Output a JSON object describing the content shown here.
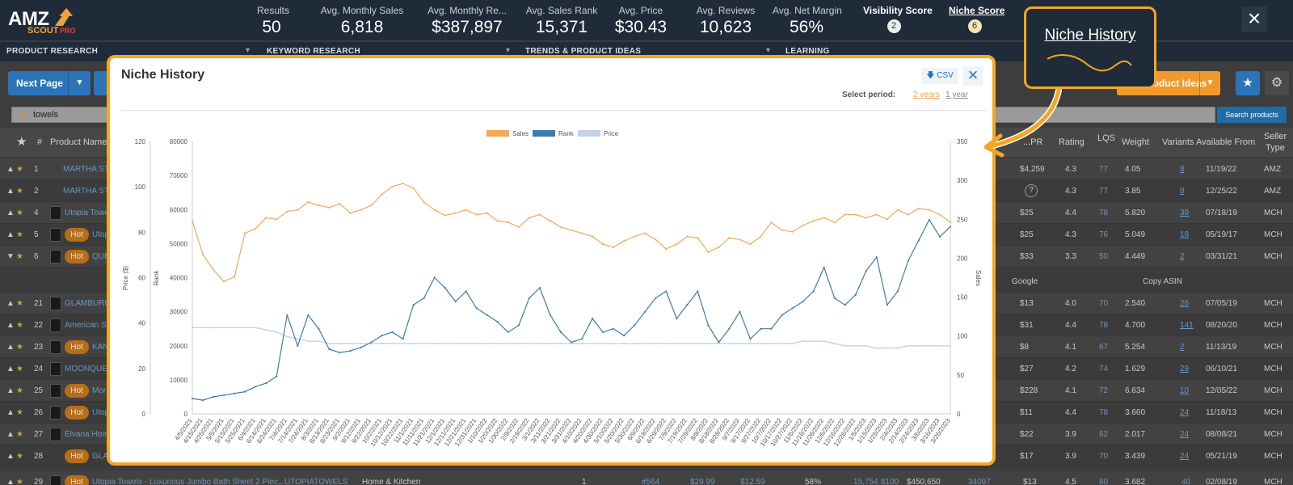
{
  "logo": {
    "primary": "AMZ",
    "secondary": "SCOUT",
    "badge": "PRO"
  },
  "stats": [
    {
      "label": "Results",
      "value": "50"
    },
    {
      "label": "Avg. Monthly Sales",
      "value": "6,818"
    },
    {
      "label": "Avg. Monthly Re...",
      "value": "$387,897"
    },
    {
      "label": "Avg. Sales Rank",
      "value": "15,371"
    },
    {
      "label": "Avg. Price",
      "value": "$30.43"
    },
    {
      "label": "Avg. Reviews",
      "value": "10,623"
    },
    {
      "label": "Avg. Net Margin",
      "value": "56%"
    }
  ],
  "scores": {
    "visibility": {
      "label": "Visibility Score",
      "value": "2",
      "color": "#e9f1ec"
    },
    "niche": {
      "label": "Niche Score",
      "value": "6",
      "color": "#f5e6b8"
    }
  },
  "close_icon": "close-icon",
  "sections": [
    "PRODUCT RESEARCH",
    "KEYWORD RESEARCH",
    "TRENDS & PRODUCT IDEAS",
    "LEARNING"
  ],
  "toolbar": {
    "next_page": "Next Page",
    "product_ideas": "Product Ideas",
    "search_button": "Search products"
  },
  "search": {
    "value": "towels"
  },
  "table": {
    "headers": {
      "num": "#",
      "product_name": "Product Name",
      "price_short": "...PR",
      "rating": "Rating",
      "lqs": "LQS",
      "weight": "Weight",
      "variants": "Variants",
      "available_from": "Available From",
      "seller_type_1": "Seller",
      "seller_type_2": "Type"
    },
    "rows": [
      {
        "num": "1",
        "name": "MARTHA ST",
        "hot": false,
        "thumb": false,
        "price": "$4,259",
        "rating": "4.3",
        "lqs": "77",
        "weight": "4.05",
        "variants": "8",
        "available": "11/19/22",
        "seller": "AMZ"
      },
      {
        "num": "2",
        "name": "MARTHA ST",
        "hot": false,
        "thumb": false,
        "price": "?",
        "rating": "4.3",
        "lqs": "77",
        "weight": "3.85",
        "variants": "8",
        "available": "12/25/22",
        "seller": "AMZ"
      },
      {
        "num": "4",
        "name": "Utopia Towe",
        "hot": false,
        "thumb": true,
        "price": "$25",
        "rating": "4.4",
        "lqs": "78",
        "weight": "5.820",
        "variants": "39",
        "available": "07/18/19",
        "seller": "MCH"
      },
      {
        "num": "5",
        "name": "Utop",
        "hot": true,
        "thumb": true,
        "price": "$25",
        "rating": "4.3",
        "lqs": "76",
        "weight": "5.049",
        "variants": "18",
        "available": "05/19/17",
        "seller": "MCH"
      },
      {
        "num": "6",
        "name": "QUE",
        "hot": true,
        "thumb": true,
        "price": "$33",
        "rating": "3.3",
        "lqs": "50",
        "weight": "4.449",
        "variants": "2",
        "available": "03/31/21",
        "seller": "MCH"
      }
    ],
    "expanded_row": {
      "google": "Google",
      "copy_asin": "Copy ASIN"
    },
    "rows2": [
      {
        "num": "21",
        "name": "GLAMBURG",
        "hot": false,
        "thumb": true,
        "price": "$13",
        "rating": "4.0",
        "lqs": "70",
        "weight": "2.540",
        "variants": "26",
        "available": "07/05/19",
        "seller": "MCH"
      },
      {
        "num": "22",
        "name": "American So",
        "hot": false,
        "thumb": true,
        "price": "$31",
        "rating": "4.4",
        "lqs": "78",
        "weight": "4.700",
        "variants": "141",
        "available": "08/20/20",
        "seller": "MCH"
      },
      {
        "num": "23",
        "name": "KAN",
        "hot": true,
        "thumb": true,
        "price": "$8",
        "rating": "4.1",
        "lqs": "67",
        "weight": "5.254",
        "variants": "2",
        "available": "11/13/19",
        "seller": "MCH"
      },
      {
        "num": "24",
        "name": "MOONQUE",
        "hot": false,
        "thumb": true,
        "price": "$27",
        "rating": "4.2",
        "lqs": "74",
        "weight": "1.629",
        "variants": "29",
        "available": "06/10/21",
        "seller": "MCH"
      },
      {
        "num": "25",
        "name": "Mor",
        "hot": true,
        "thumb": true,
        "price": "$228",
        "rating": "4.1",
        "lqs": "72",
        "weight": "6.634",
        "variants": "10",
        "available": "12/05/22",
        "seller": "MCH"
      },
      {
        "num": "26",
        "name": "Utop",
        "hot": true,
        "thumb": true,
        "price": "$11",
        "rating": "4.4",
        "lqs": "78",
        "weight": "3.660",
        "variants": "24",
        "available": "11/18/13",
        "seller": "MCH"
      },
      {
        "num": "27",
        "name": "Elvana Hom",
        "hot": false,
        "thumb": true,
        "price": "$22",
        "rating": "3.9",
        "lqs": "62",
        "weight": "2.017",
        "variants": "24",
        "available": "08/08/21",
        "seller": "MCH"
      },
      {
        "num": "28",
        "name": "GLA",
        "hot": true,
        "thumb": false,
        "price": "$17",
        "rating": "3.9",
        "lqs": "70",
        "weight": "3.439",
        "variants": "24",
        "available": "05/21/19",
        "seller": "MCH"
      }
    ],
    "last_row": {
      "num": "29",
      "name": "Utopia Towels - Luxurious Jumbo Bath Sheet 2 Piec...",
      "brand": "UTOPIATOWELS",
      "category": "Home & Kitchen",
      "fba": "1",
      "rank": "#564",
      "price1": "$29.99",
      "price2": "$12.59",
      "margin": "58%",
      "reviews": "15,754",
      "sales": "8100",
      "revenue": "$450,650",
      "num2": "34097",
      "price": "$13",
      "rating": "4.5",
      "lqs": "80",
      "weight": "3.682",
      "variants": "40",
      "available": "02/08/19",
      "seller": "MCH"
    }
  },
  "modal": {
    "title": "Niche History",
    "csv_label": "CSV",
    "select_period_label": "Select period:",
    "period_options": [
      "2 years",
      "1 year"
    ],
    "selected_period": "2 years"
  },
  "callout": {
    "title": "Niche History"
  },
  "chart_data": {
    "type": "line",
    "legend": [
      "Sales",
      "Rank",
      "Price"
    ],
    "legend_position": "top-center",
    "colors": {
      "Sales": "#f5a85a",
      "Rank": "#3e7bac",
      "Price": "#c2d4e3"
    },
    "axes": {
      "price": {
        "label": "Price ($)",
        "ticks": [
          "0",
          "20",
          "40",
          "60",
          "80",
          "100",
          "120"
        ],
        "range": [
          0,
          120
        ]
      },
      "rank": {
        "label": "Rank",
        "ticks": [
          "0",
          "10000",
          "20000",
          "30000",
          "40000",
          "50000",
          "60000",
          "70000",
          "80000"
        ],
        "range": [
          0,
          80000
        ]
      },
      "sales": {
        "label": "Sales",
        "ticks": [
          "0",
          "50",
          "100",
          "150",
          "200",
          "250",
          "300",
          "350"
        ],
        "range": [
          0,
          350
        ]
      }
    },
    "x_labels": [
      "4/5/2021",
      "4/15/2021",
      "4/25/2021",
      "5/5/2021",
      "5/15/2021",
      "5/25/2021",
      "6/4/2021",
      "6/14/2021",
      "6/24/2021",
      "7/4/2021",
      "7/14/2021",
      "7/24/2021",
      "8/3/2021",
      "8/13/2021",
      "8/23/2021",
      "9/2/2021",
      "9/12/2021",
      "9/22/2021",
      "10/2/2021",
      "10/12/2021",
      "10/22/2021",
      "11/1/2021",
      "11/11/2021",
      "11/21/2021",
      "12/1/2021",
      "12/11/2021",
      "12/21/2021",
      "12/31/2021",
      "1/10/2022",
      "1/20/2022",
      "1/30/2022",
      "2/9/2022",
      "2/19/2022",
      "3/1/2022",
      "3/11/2022",
      "3/21/2022",
      "3/31/2022",
      "4/10/2022",
      "4/20/2022",
      "4/30/2022",
      "5/10/2022",
      "5/20/2022",
      "5/30/2022",
      "6/9/2022",
      "6/19/2022",
      "6/29/2022",
      "7/9/2022",
      "7/19/2022",
      "7/29/2022",
      "8/8/2022",
      "8/18/2022",
      "8/28/2022",
      "9/7/2022",
      "9/17/2022",
      "9/27/2022",
      "10/7/2022",
      "10/17/2022",
      "10/27/2022",
      "11/6/2022",
      "11/16/2022",
      "11/26/2022",
      "12/6/2022",
      "12/16/2022",
      "12/26/2022",
      "1/5/2023",
      "1/15/2023",
      "1/25/2023",
      "2/4/2023",
      "2/14/2023",
      "2/24/2023",
      "3/6/2023",
      "3/16/2023",
      "3/26/2023"
    ],
    "series": [
      {
        "name": "Sales",
        "axis": "sales",
        "values": [
          248,
          205,
          185,
          170,
          176,
          232,
          238,
          252,
          250,
          260,
          262,
          272,
          268,
          265,
          270,
          258,
          262,
          268,
          282,
          292,
          296,
          290,
          272,
          262,
          255,
          258,
          262,
          256,
          258,
          248,
          246,
          240,
          252,
          256,
          248,
          240,
          236,
          232,
          228,
          218,
          214,
          222,
          228,
          232,
          224,
          212,
          218,
          228,
          226,
          208,
          214,
          226,
          224,
          218,
          228,
          246,
          236,
          234,
          242,
          248,
          252,
          246,
          256,
          256,
          252,
          256,
          250,
          262,
          256,
          264,
          262,
          256,
          246
        ]
      },
      {
        "name": "Rank",
        "axis": "rank",
        "values": [
          4500,
          4000,
          5000,
          5500,
          6000,
          6500,
          8000,
          9000,
          11000,
          29000,
          20000,
          29000,
          25000,
          19000,
          18000,
          18500,
          19500,
          21000,
          23000,
          24000,
          22000,
          32000,
          34000,
          40000,
          37000,
          33000,
          36000,
          31000,
          29000,
          27000,
          24000,
          26000,
          34000,
          37000,
          29000,
          24000,
          21000,
          22000,
          28000,
          24000,
          25000,
          23000,
          26000,
          30000,
          34000,
          36000,
          28000,
          32000,
          36000,
          26000,
          21000,
          25000,
          30000,
          22000,
          25000,
          25000,
          29000,
          31000,
          33000,
          36000,
          43000,
          34000,
          32000,
          35000,
          42000,
          46000,
          32000,
          36000,
          45000,
          51000,
          57000,
          52000,
          55000
        ]
      },
      {
        "name": "Price",
        "axis": "price",
        "values": [
          38,
          38,
          38,
          38,
          38,
          38,
          38,
          37,
          36,
          34,
          33,
          32,
          32,
          31,
          31,
          31,
          31,
          31,
          31,
          31,
          31,
          31,
          31,
          31,
          31,
          31,
          31,
          31,
          31,
          31,
          31,
          31,
          31,
          31,
          31,
          31,
          31,
          31,
          31,
          31,
          31,
          31,
          31,
          31,
          31,
          31,
          31,
          31,
          31,
          31,
          31,
          31,
          31,
          31,
          31,
          31,
          31,
          31,
          32,
          32,
          32,
          31,
          30,
          30,
          30,
          29,
          29,
          29,
          30,
          30,
          30,
          30,
          30
        ]
      }
    ]
  }
}
